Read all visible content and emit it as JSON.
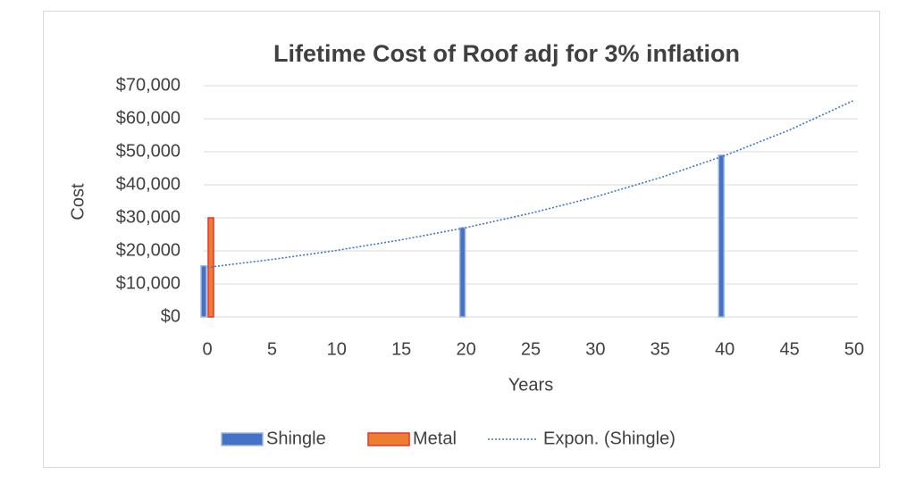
{
  "chart_data": {
    "type": "bar",
    "title": "Lifetime Cost of Roof adj for 3% inflation",
    "x_label": "Years",
    "y_label": "Cost",
    "x": [
      0,
      20,
      40
    ],
    "series": [
      {
        "name": "Shingle",
        "color": "#4472c4",
        "values": [
          15500,
          27000,
          49000
        ]
      },
      {
        "name": "Metal",
        "color": "#ed7d31",
        "border": "#e8342a",
        "values": [
          30000,
          null,
          null
        ]
      },
      {
        "name": "Expon. (Shingle)",
        "type": "line",
        "color": "#4472c4",
        "dotted": true,
        "x": [
          0,
          5,
          10,
          15,
          20,
          25,
          30,
          35,
          40,
          45,
          50
        ],
        "values": [
          15000,
          17400,
          20150,
          23350,
          27050,
          31400,
          36350,
          42150,
          48850,
          56600,
          65600
        ]
      }
    ],
    "xlim": [
      0,
      50
    ],
    "xticks": [
      0,
      5,
      10,
      15,
      20,
      25,
      30,
      35,
      40,
      45,
      50
    ],
    "ylim": [
      0,
      70000
    ],
    "yticks": [
      {
        "value": 0,
        "label": "$0"
      },
      {
        "value": 10000,
        "label": "$10,000"
      },
      {
        "value": 20000,
        "label": "$20,000"
      },
      {
        "value": 30000,
        "label": "$30,000"
      },
      {
        "value": 40000,
        "label": "$40,000"
      },
      {
        "value": 50000,
        "label": "$50,000"
      },
      {
        "value": 60000,
        "label": "$60,000"
      },
      {
        "value": 70000,
        "label": "$70,000"
      }
    ],
    "grid": true,
    "legend": "bottom"
  }
}
